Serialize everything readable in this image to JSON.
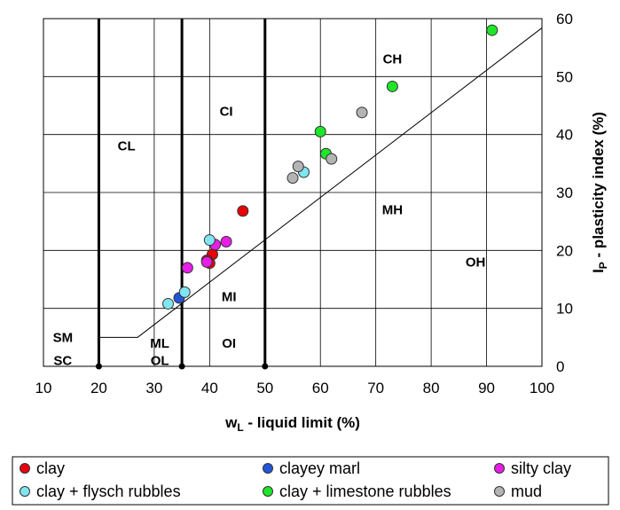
{
  "chart_data": {
    "type": "scatter",
    "xlabel": "wL - liquid limit (%)",
    "xlabel_parts": {
      "main": "w",
      "sub": "L",
      "rest": " - liquid limit (%)"
    },
    "ylabel": "IP - plasticity index (%)",
    "ylabel_parts": {
      "main": "I",
      "sub": "P",
      "rest": " - plasticity index (%)"
    },
    "xlim": [
      10,
      100
    ],
    "ylim": [
      0,
      60
    ],
    "x_ticks": [
      10,
      20,
      30,
      40,
      50,
      60,
      70,
      80,
      90,
      100
    ],
    "y_ticks": [
      0,
      10,
      20,
      30,
      40,
      50,
      60
    ],
    "x_tick_labels": [
      "10",
      "20",
      "30",
      "40",
      "50",
      "60",
      "70",
      "80",
      "90",
      "100"
    ],
    "y_tick_labels": [
      "0",
      "10",
      "20",
      "30",
      "40",
      "50",
      "60"
    ],
    "y_axis_side": "right",
    "grid": true,
    "legend_position": "bottom",
    "boundary_lines": [
      20,
      35,
      50
    ],
    "a_line": [
      [
        20,
        5
      ],
      [
        27,
        5
      ],
      [
        100,
        58.4
      ]
    ],
    "zones": [
      {
        "label": "CH",
        "x": 73,
        "y": 53
      },
      {
        "label": "CI",
        "x": 43,
        "y": 44
      },
      {
        "label": "CL",
        "x": 25,
        "y": 38
      },
      {
        "label": "MH",
        "x": 73,
        "y": 27
      },
      {
        "label": "OH",
        "x": 88,
        "y": 18
      },
      {
        "label": "MI",
        "x": 43.5,
        "y": 12
      },
      {
        "label": "OI",
        "x": 43.5,
        "y": 4
      },
      {
        "label": "ML",
        "x": 31,
        "y": 4
      },
      {
        "label": "OL",
        "x": 31,
        "y": 1
      },
      {
        "label": "SM",
        "x": 13.5,
        "y": 5
      },
      {
        "label": "SC",
        "x": 13.5,
        "y": 1
      }
    ],
    "series": [
      {
        "name": "clay",
        "color": "#e8000b",
        "points": [
          [
            40.5,
            19.3
          ],
          [
            40,
            17.8
          ],
          [
            46,
            26.8
          ],
          [
            39.5,
            18.3
          ]
        ]
      },
      {
        "name": "clayey marl",
        "color": "#2255d8",
        "points": [
          [
            34.5,
            11.8
          ]
        ]
      },
      {
        "name": "silty clay",
        "color": "#e61ee6",
        "points": [
          [
            36,
            17
          ],
          [
            39.5,
            18
          ],
          [
            41,
            21
          ],
          [
            43,
            21.5
          ]
        ]
      },
      {
        "name": "clay + flysch rubbles",
        "color": "#7fe6f0",
        "points": [
          [
            32.5,
            10.8
          ],
          [
            35.5,
            12.8
          ],
          [
            40,
            21.8
          ],
          [
            57,
            33.5
          ]
        ]
      },
      {
        "name": "clay + limestone rubbles",
        "color": "#1ee62a",
        "points": [
          [
            60,
            40.5
          ],
          [
            61,
            36.7
          ],
          [
            73,
            48.3
          ],
          [
            91,
            58
          ]
        ]
      },
      {
        "name": "mud",
        "color": "#b4b4b4",
        "points": [
          [
            55,
            32.5
          ],
          [
            56,
            34.5
          ],
          [
            62,
            35.8
          ],
          [
            67.5,
            43.8
          ]
        ]
      }
    ]
  }
}
